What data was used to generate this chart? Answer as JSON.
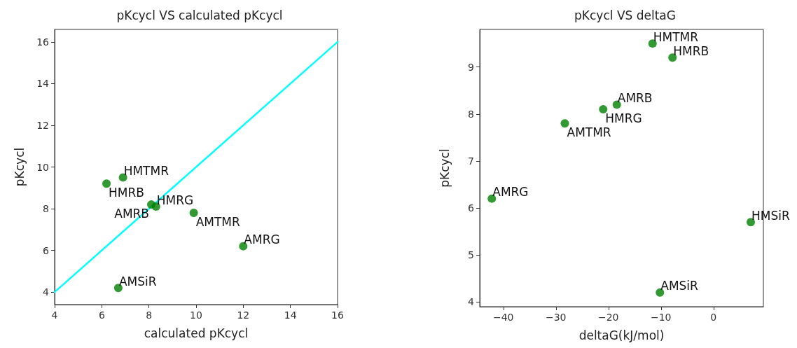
{
  "chart_data": [
    {
      "type": "scatter",
      "title": "pKcycl VS calculated pKcycl",
      "xlabel": "calculated pKcycl",
      "ylabel": "pKcycl",
      "xlim": [
        4,
        16
      ],
      "ylim": [
        3.4,
        16.6
      ],
      "xticks": [
        4,
        6,
        8,
        10,
        12,
        14,
        16
      ],
      "yticks": [
        4,
        6,
        8,
        10,
        12,
        14,
        16
      ],
      "grid": false,
      "marker": "circle",
      "series": [
        {
          "color": "#008000",
          "x": [
            6.9,
            6.2,
            8.1,
            8.3,
            9.9,
            12.0,
            6.7
          ],
          "values": [
            9.5,
            9.2,
            8.2,
            8.1,
            7.8,
            6.2,
            4.2
          ]
        },
        {
          "type": "line",
          "color": "#00ffff",
          "marker": "none",
          "line_style": "solid",
          "x": [
            4,
            16
          ],
          "values": [
            4,
            16
          ]
        }
      ],
      "annotations": [
        {
          "text": "HMTMR",
          "x": 6.9,
          "y": 9.5
        },
        {
          "text": "HMRB",
          "x": 6.2,
          "y": 9.2
        },
        {
          "text": "AMRB",
          "x": 8.1,
          "y": 8.2
        },
        {
          "text": "HMRG",
          "x": 8.3,
          "y": 8.1
        },
        {
          "text": "AMTMR",
          "x": 9.9,
          "y": 7.8
        },
        {
          "text": "AMRG",
          "x": 12.0,
          "y": 6.2
        },
        {
          "text": "AMSiR",
          "x": 6.7,
          "y": 4.2
        }
      ]
    },
    {
      "type": "scatter",
      "title": "pKcycl VS deltaG",
      "xlabel": "deltaG(kJ/mol)",
      "ylabel": "pKcycl",
      "xlim": [
        -44.5,
        9.5
      ],
      "ylim": [
        3.9,
        9.8
      ],
      "xticks": [
        -40,
        -30,
        -20,
        -10,
        0
      ],
      "yticks": [
        4,
        5,
        6,
        7,
        8,
        9
      ],
      "grid": false,
      "marker": "circle",
      "series": [
        {
          "color": "#008000",
          "x": [
            -11.6,
            -7.8,
            -18.4,
            -21.0,
            -28.3,
            -42.2,
            7.1,
            -10.2
          ],
          "values": [
            9.5,
            9.2,
            8.2,
            8.1,
            7.8,
            6.2,
            5.7,
            4.2
          ]
        }
      ],
      "annotations": [
        {
          "text": "HMTMR",
          "x": -11.6,
          "y": 9.5
        },
        {
          "text": "HMRB",
          "x": -7.8,
          "y": 9.2
        },
        {
          "text": "AMRB",
          "x": -18.4,
          "y": 8.2
        },
        {
          "text": "HMRG",
          "x": -21.0,
          "y": 8.1
        },
        {
          "text": "AMTMR",
          "x": -28.3,
          "y": 7.8
        },
        {
          "text": "AMRG",
          "x": -42.2,
          "y": 6.2
        },
        {
          "text": "HMSiR",
          "x": 7.1,
          "y": 5.7
        },
        {
          "text": "AMSiR",
          "x": -10.2,
          "y": 4.2
        }
      ]
    }
  ]
}
